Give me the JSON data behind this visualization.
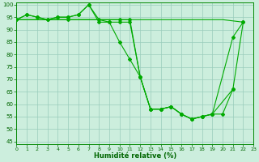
{
  "xlabel": "Humidité relative (%)",
  "background_color": "#cceedd",
  "grid_color": "#99ccbb",
  "line_color": "#00aa00",
  "xlim": [
    0,
    23
  ],
  "ylim": [
    44,
    101
  ],
  "ytick_vals": [
    45,
    50,
    55,
    60,
    65,
    70,
    75,
    80,
    85,
    90,
    95,
    100
  ],
  "xtick_vals": [
    0,
    1,
    2,
    3,
    4,
    5,
    6,
    7,
    8,
    9,
    10,
    11,
    12,
    13,
    14,
    15,
    16,
    17,
    18,
    19,
    20,
    21,
    22,
    23
  ],
  "line1_x": [
    0,
    1,
    2,
    3,
    4,
    5,
    6,
    7,
    8,
    9,
    10,
    11,
    12,
    13,
    14,
    15,
    16,
    17,
    18,
    19,
    21,
    22
  ],
  "line1_y": [
    94,
    96,
    95,
    94,
    95,
    95,
    96,
    100,
    94,
    93,
    85,
    78,
    71,
    58,
    58,
    59,
    56,
    54,
    55,
    56,
    87,
    93
  ],
  "line2_x": [
    0,
    1,
    2,
    3,
    4,
    5,
    6,
    7,
    8,
    9,
    10,
    11,
    12,
    13,
    14,
    15,
    16,
    17,
    18,
    19,
    21
  ],
  "line2_y": [
    94,
    96,
    95,
    94,
    95,
    95,
    96,
    100,
    93,
    93,
    93,
    93,
    71,
    58,
    58,
    59,
    56,
    54,
    55,
    56,
    66
  ],
  "line3_x": [
    0,
    5,
    10,
    11,
    12,
    13,
    14,
    15,
    16,
    17,
    18,
    19,
    20,
    21,
    22
  ],
  "line3_y": [
    94,
    94,
    94,
    94,
    71,
    58,
    58,
    59,
    56,
    54,
    55,
    56,
    56,
    66,
    93
  ],
  "line4_x": [
    0,
    10,
    20,
    22
  ],
  "line4_y": [
    94,
    94,
    94,
    93
  ]
}
